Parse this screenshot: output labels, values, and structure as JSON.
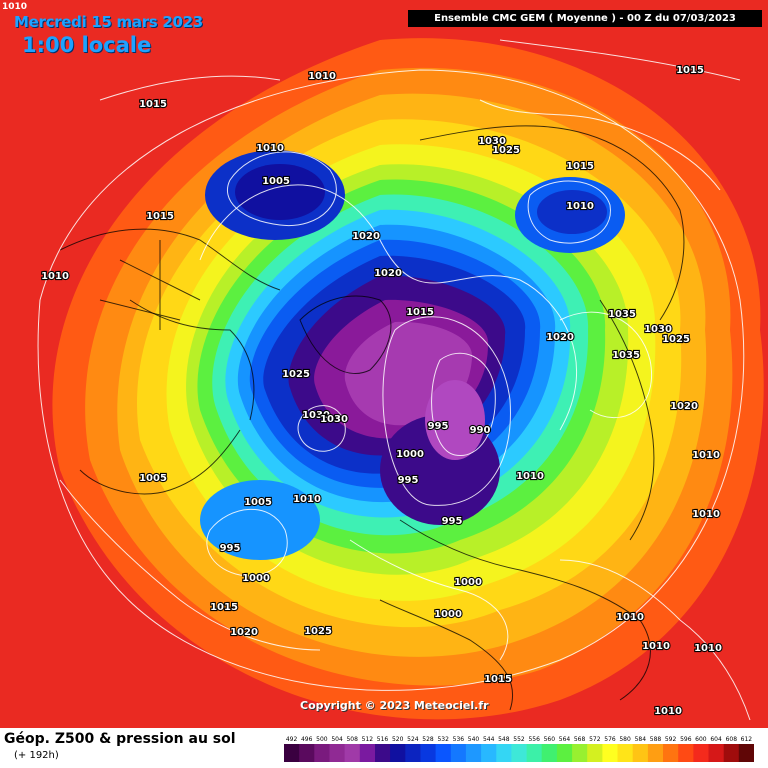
{
  "corner_label": "1010",
  "date_line": "Mercredi 15 mars 2023",
  "time_line": "1:00 locale",
  "header_text": "Ensemble CMC GEM  ( Moyenne )  -  00 Z du 07/03/2023",
  "copyright": "Copyright © 2023 Meteociel.fr",
  "legend": {
    "title": "Géop. Z500 & pression au sol",
    "subtitle": "(+ 192h)",
    "scale_values": [
      "492",
      "496",
      "500",
      "504",
      "508",
      "512",
      "516",
      "520",
      "524",
      "528",
      "532",
      "536",
      "540",
      "544",
      "548",
      "552",
      "556",
      "560",
      "564",
      "568",
      "572",
      "576",
      "580",
      "584",
      "588",
      "592",
      "596",
      "600",
      "604",
      "608",
      "612"
    ],
    "scale_colors": [
      "#3a0040",
      "#5a0a5e",
      "#7a1a7e",
      "#902a94",
      "#a03aa8",
      "#7a1aa0",
      "#3c0a8a",
      "#1010a0",
      "#0c24c0",
      "#0838e0",
      "#0a56ff",
      "#1478ff",
      "#1e98ff",
      "#28b8ff",
      "#34d6f4",
      "#3ee8d8",
      "#3cf0a8",
      "#40f070",
      "#5cf040",
      "#98f030",
      "#d4f020",
      "#ffff20",
      "#ffe418",
      "#ffc414",
      "#ff9e12",
      "#ff7410",
      "#ff4a14",
      "#f42a1c",
      "#d61818",
      "#a00c0c",
      "#600606"
    ]
  },
  "isobar_labels": [
    "1010",
    "1015",
    "1010",
    "1005",
    "1015",
    "1010",
    "1020",
    "1020",
    "1015",
    "1025",
    "1030",
    "1030",
    "995",
    "990",
    "1000",
    "995",
    "1005",
    "1005",
    "1010",
    "995",
    "1000",
    "1015",
    "1020",
    "1025",
    "1000",
    "1000",
    "1030",
    "1025",
    "1015",
    "1010",
    "1020",
    "1035",
    "1035",
    "1030",
    "1025",
    "1020",
    "1015",
    "1010",
    "1010",
    "1010",
    "1010",
    "995",
    "1010",
    "1015",
    "1010",
    "1010"
  ]
}
